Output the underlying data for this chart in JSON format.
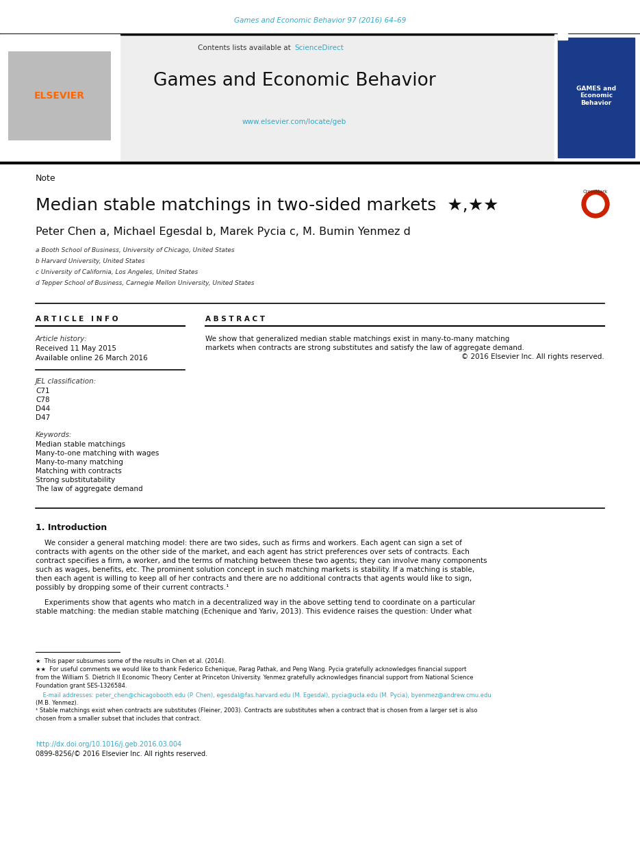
{
  "bg_color": "#ffffff",
  "top_journal_line": "Games and Economic Behavior 97 (2016) 64–69",
  "top_journal_color": "#2eaacc",
  "header_bg": "#eeeeee",
  "sciencedirect_color": "#2eaacc",
  "journal_title": "Games and Economic Behavior",
  "journal_url": "www.elsevier.com/locate/geb",
  "journal_url_color": "#2eaacc",
  "elsevier_color": "#ff6600",
  "note_label": "Note",
  "paper_title": "Median stable matchings in two-sided markets",
  "authors": "Peter Chen a, Michael Egesdal b, Marek Pycia c, M. Bumin Yenmez d",
  "affil_a": "a Booth School of Business, University of Chicago, United States",
  "affil_b": "b Harvard University, United States",
  "affil_c": "c University of California, Los Angeles, United States",
  "affil_d": "d Tepper School of Business, Carnegie Mellon University, United States",
  "article_info_header": "A R T I C L E   I N F O",
  "abstract_header": "A B S T R A C T",
  "article_history_label": "Article history:",
  "received": "Received 11 May 2015",
  "available": "Available online 26 March 2016",
  "jel_label": "JEL classification:",
  "jel_codes": [
    "C71",
    "C78",
    "D44",
    "D47"
  ],
  "keywords_label": "Keywords:",
  "keywords": [
    "Median stable matchings",
    "Many-to-one matching with wages",
    "Many-to-many matching",
    "Matching with contracts",
    "Strong substitutability",
    "The law of aggregate demand"
  ],
  "abstract_lines": [
    "We show that generalized median stable matchings exist in many-to-many matching",
    "markets when contracts are strong substitutes and satisfy the law of aggregate demand.",
    "© 2016 Elsevier Inc. All rights reserved."
  ],
  "intro_header": "1. Introduction",
  "intro_para1_lines": [
    "    We consider a general matching model: there are two sides, such as firms and workers. Each agent can sign a set of",
    "contracts with agents on the other side of the market, and each agent has strict preferences over sets of contracts. Each",
    "contract specifies a firm, a worker, and the terms of matching between these two agents; they can involve many components",
    "such as wages, benefits, etc. The prominent solution concept in such matching markets is stability. If a matching is stable,",
    "then each agent is willing to keep all of her contracts and there are no additional contracts that agents would like to sign,",
    "possibly by dropping some of their current contracts.¹"
  ],
  "intro_para2_lines": [
    "    Experiments show that agents who match in a decentralized way in the above setting tend to coordinate on a particular",
    "stable matching: the median stable matching (Echenique and Yariv, 2013). This evidence raises the question: Under what"
  ],
  "doi_text": "http://dx.doi.org/10.1016/j.geb.2016.03.004",
  "doi_color": "#2eaacc",
  "issn_text": "0899-8256/© 2016 Elsevier Inc. All rights reserved.",
  "link_color": "#2eaacc",
  "fn_star": "★  This paper subsumes some of the results in Chen et al. (2014).",
  "fn_starstar_lines": [
    "★★  For useful comments we would like to thank Federico Echenique, Parag Pathak, and Peng Wang. Pycia gratefully acknowledges financial support",
    "from the William S. Dietrich II Economic Theory Center at Princeton University. Yenmez gratefully acknowledges financial support from National Science",
    "Foundation grant SES-1326584."
  ],
  "fn_email_line1": "    E-mail addresses: peter_chen@chicagobooth.edu (P. Chen), egesdal@fas.harvard.edu (M. Egesdal), pycia@ucla.edu (M. Pycia), byenmez@andrew.cmu.edu",
  "fn_email_line2": "(M.B. Yenmez).",
  "fn1_line1": "¹ Stable matchings exist when contracts are substitutes (Fleiner, 2003). Contracts are substitutes when a contract that is chosen from a larger set is also",
  "fn1_line2": "chosen from a smaller subset that includes that contract."
}
